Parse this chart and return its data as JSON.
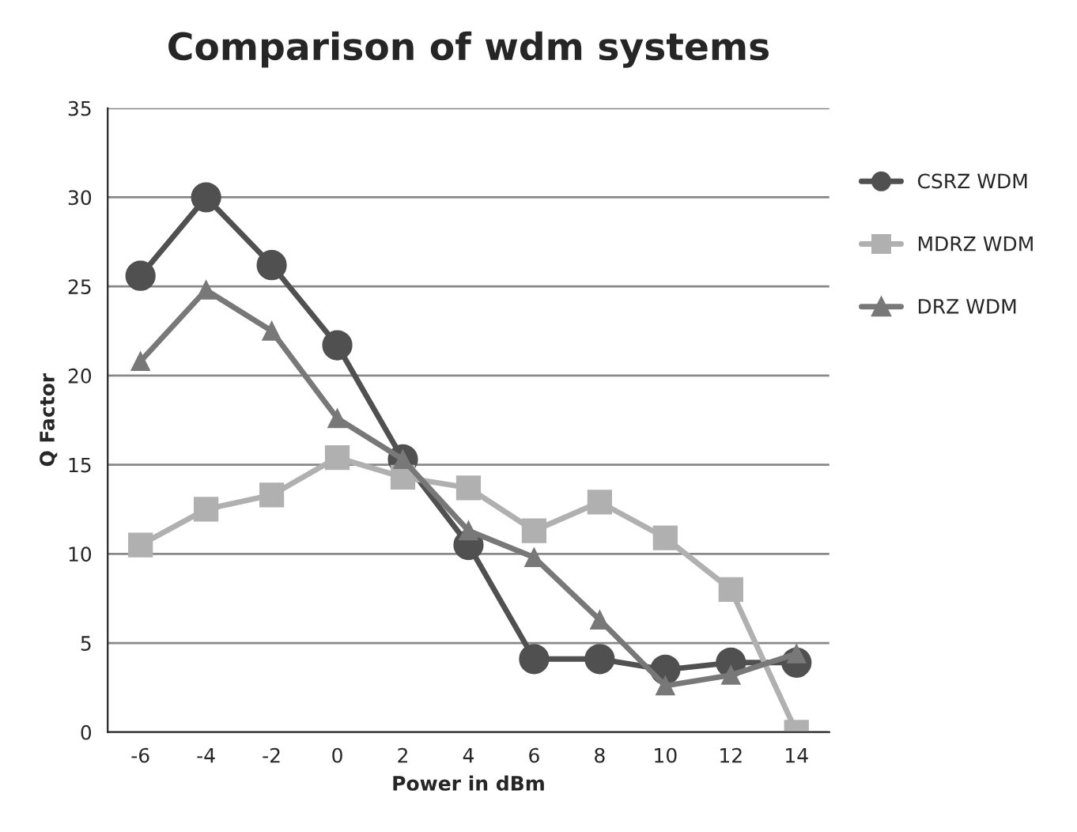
{
  "chart_data": {
    "type": "line",
    "title": "Comparison of wdm systems",
    "xlabel": "Power in dBm",
    "ylabel": "Q Factor",
    "categories": [
      "-6",
      "-4",
      "-2",
      "0",
      "2",
      "4",
      "6",
      "8",
      "10",
      "12",
      "14"
    ],
    "series": [
      {
        "name": "CSRZ WDM",
        "color": "#505050",
        "marker": "circle",
        "values": [
          25.6,
          30.0,
          26.2,
          21.7,
          15.3,
          10.5,
          4.1,
          4.1,
          3.5,
          3.9,
          3.9
        ]
      },
      {
        "name": "MDRZ WDM",
        "color": "#b0b0b0",
        "marker": "square",
        "values": [
          10.5,
          12.5,
          13.3,
          15.4,
          14.3,
          13.7,
          11.3,
          12.9,
          10.9,
          8.0,
          0
        ]
      },
      {
        "name": "DRZ WDM",
        "color": "#787878",
        "marker": "triangle",
        "values": [
          20.8,
          24.8,
          22.5,
          17.6,
          15.3,
          11.3,
          9.8,
          6.3,
          2.6,
          3.2,
          4.4
        ]
      }
    ],
    "ylim": [
      0,
      35
    ],
    "yticks": [
      0,
      5,
      10,
      15,
      20,
      25,
      30,
      35
    ],
    "grid": "y",
    "legend": "right",
    "line_style": "solid"
  }
}
